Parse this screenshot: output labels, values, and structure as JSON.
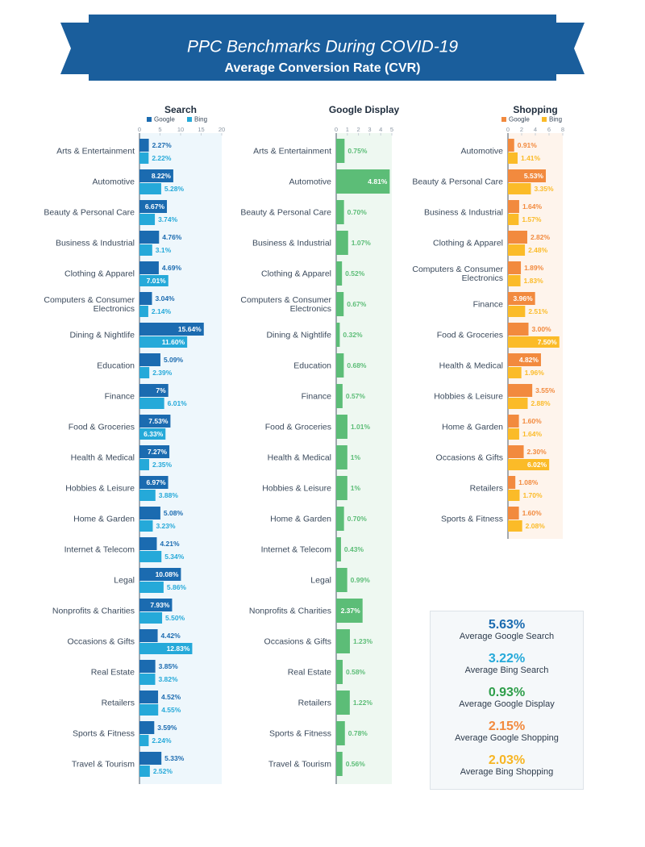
{
  "header": {
    "title": "PPC Benchmarks During COVID-19",
    "subtitle": "Average Conversion Rate (CVR)"
  },
  "chart_data": [
    {
      "type": "bar",
      "orientation": "horizontal",
      "title": "Search",
      "categories": [
        "Arts & Entertainment",
        "Automotive",
        "Beauty & Personal Care",
        "Business & Industrial",
        "Clothing & Apparel",
        "Computers & Consumer Electronics",
        "Dining & Nightlife",
        "Education",
        "Finance",
        "Food & Groceries",
        "Health & Medical",
        "Hobbies & Leisure",
        "Home & Garden",
        "Internet & Telecom",
        "Legal",
        "Nonprofits & Charities",
        "Occasions & Gifts",
        "Real Estate",
        "Retailers",
        "Sports & Fitness",
        "Travel & Tourism"
      ],
      "series": [
        {
          "name": "Google",
          "color": "#1b6bb0",
          "values": [
            2.27,
            8.22,
            6.67,
            4.76,
            4.69,
            3.04,
            15.64,
            5.09,
            7,
            7.53,
            7.27,
            6.97,
            5.08,
            4.21,
            10.08,
            7.93,
            4.42,
            3.85,
            4.52,
            3.59,
            5.33
          ],
          "value_labels": [
            "2.27%",
            "8.22%",
            "6.67%",
            "4.76%",
            "4.69%",
            "3.04%",
            "15.64%",
            "5.09%",
            "7%",
            "7.53%",
            "7.27%",
            "6.97%",
            "5.08%",
            "4.21%",
            "10.08%",
            "7.93%",
            "4.42%",
            "3.85%",
            "4.52%",
            "3.59%",
            "5.33%"
          ]
        },
        {
          "name": "Bing",
          "color": "#25a9d9",
          "values": [
            2.22,
            5.28,
            3.74,
            3.1,
            7.01,
            2.14,
            11.6,
            2.39,
            6.01,
            6.33,
            2.35,
            3.88,
            3.23,
            5.34,
            5.86,
            5.5,
            12.83,
            3.82,
            4.55,
            2.24,
            2.52
          ],
          "value_labels": [
            "2.22%",
            "5.28%",
            "3.74%",
            "3.1%",
            "7.01%",
            "2.14%",
            "11.60%",
            "2.39%",
            "6.01%",
            "6.33%",
            "2.35%",
            "3.88%",
            "3.23%",
            "5.34%",
            "5.86%",
            "5.50%",
            "12.83%",
            "3.82%",
            "4.55%",
            "2.24%",
            "2.52%"
          ]
        }
      ],
      "xlim": [
        0,
        20
      ],
      "xticks": [
        0,
        5,
        10,
        15,
        20
      ],
      "panel_color": "#eef7fc"
    },
    {
      "type": "bar",
      "orientation": "horizontal",
      "title": "Google Display",
      "categories": [
        "Arts & Entertainment",
        "Automotive",
        "Beauty & Personal Care",
        "Business & Industrial",
        "Clothing & Apparel",
        "Computers & Consumer Electronics",
        "Dining & Nightlife",
        "Education",
        "Finance",
        "Food & Groceries",
        "Health & Medical",
        "Hobbies & Leisure",
        "Home & Garden",
        "Internet & Telecom",
        "Legal",
        "Nonprofits & Charities",
        "Occasions & Gifts",
        "Real Estate",
        "Retailers",
        "Sports & Fitness",
        "Travel & Tourism"
      ],
      "values": [
        0.75,
        4.81,
        0.7,
        1.07,
        0.52,
        0.67,
        0.32,
        0.68,
        0.57,
        1.01,
        1,
        1,
        0.7,
        0.43,
        0.99,
        2.37,
        1.23,
        0.58,
        1.22,
        0.78,
        0.56
      ],
      "value_labels": [
        "0.75%",
        "4.81%",
        "0.70%",
        "1.07%",
        "0.52%",
        "0.67%",
        "0.32%",
        "0.68%",
        "0.57%",
        "1.01%",
        "1%",
        "1%",
        "0.70%",
        "0.43%",
        "0.99%",
        "2.37%",
        "1.23%",
        "0.58%",
        "1.22%",
        "0.78%",
        "0.56%"
      ],
      "color": "#5cbd77",
      "xlim": [
        0,
        5
      ],
      "xticks": [
        0,
        1,
        2,
        3,
        4,
        5
      ],
      "panel_color": "#eef8f1"
    },
    {
      "type": "bar",
      "orientation": "horizontal",
      "title": "Shopping",
      "categories": [
        "Automotive",
        "Beauty & Personal Care",
        "Business & Industrial",
        "Clothing & Apparel",
        "Computers & Consumer Electronics",
        "Finance",
        "Food & Groceries",
        "Health & Medical",
        "Hobbies & Leisure",
        "Home & Garden",
        "Occasions & Gifts",
        "Retailers",
        "Sports & Fitness"
      ],
      "series": [
        {
          "name": "Google",
          "color": "#f28a3e",
          "values": [
            0.91,
            5.53,
            1.64,
            2.82,
            1.89,
            3.96,
            3.0,
            4.82,
            3.55,
            1.6,
            2.3,
            1.08,
            1.6
          ],
          "value_labels": [
            "0.91%",
            "5.53%",
            "1.64%",
            "2.82%",
            "1.89%",
            "3.96%",
            "3.00%",
            "4.82%",
            "3.55%",
            "1.60%",
            "2.30%",
            "1.08%",
            "1.60%"
          ]
        },
        {
          "name": "Bing",
          "color": "#fbbb28",
          "values": [
            1.41,
            3.35,
            1.57,
            2.48,
            1.83,
            2.51,
            7.5,
            1.96,
            2.88,
            1.64,
            6.02,
            1.7,
            2.08
          ],
          "value_labels": [
            "1.41%",
            "3.35%",
            "1.57%",
            "2.48%",
            "1.83%",
            "2.51%",
            "7.50%",
            "1.96%",
            "2.88%",
            "1.64%",
            "6.02%",
            "1.70%",
            "2.08%"
          ]
        }
      ],
      "xlim": [
        0,
        8
      ],
      "xticks": [
        0,
        2,
        4,
        6,
        8
      ],
      "panel_color": "#fef4ec"
    }
  ],
  "summary": [
    {
      "value": "5.63%",
      "label": "Average Google Search",
      "color": "#1b6bb0"
    },
    {
      "value": "3.22%",
      "label": "Average Bing Search",
      "color": "#25a9d9"
    },
    {
      "value": "0.93%",
      "label": "Average Google Display",
      "color": "#2e9e4a"
    },
    {
      "value": "2.15%",
      "label": "Average Google Shopping",
      "color": "#f28a3e"
    },
    {
      "value": "2.03%",
      "label": "Average Bing Shopping",
      "color": "#f7b523"
    }
  ]
}
